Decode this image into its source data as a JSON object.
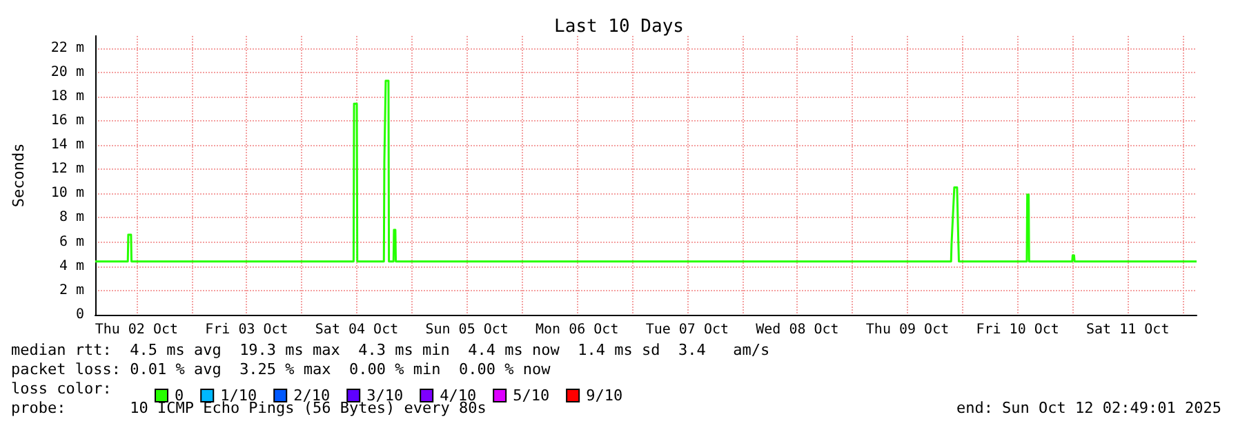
{
  "chart_data": {
    "type": "line",
    "title": "Last 10 Days",
    "ylabel": "Seconds",
    "xlim": [
      "2025-10-02T03:00",
      "2025-10-12T03:00"
    ],
    "xticks": [
      {
        "value": "2025-10-02T12:00",
        "label": "Thu 02 Oct"
      },
      {
        "value": "2025-10-03T00:00",
        "label": null
      },
      {
        "value": "2025-10-03T12:00",
        "label": "Fri 03 Oct"
      },
      {
        "value": "2025-10-04T00:00",
        "label": null
      },
      {
        "value": "2025-10-04T12:00",
        "label": "Sat 04 Oct"
      },
      {
        "value": "2025-10-05T00:00",
        "label": null
      },
      {
        "value": "2025-10-05T12:00",
        "label": "Sun 05 Oct"
      },
      {
        "value": "2025-10-06T00:00",
        "label": null
      },
      {
        "value": "2025-10-06T12:00",
        "label": "Mon 06 Oct"
      },
      {
        "value": "2025-10-07T00:00",
        "label": null
      },
      {
        "value": "2025-10-07T12:00",
        "label": "Tue 07 Oct"
      },
      {
        "value": "2025-10-08T00:00",
        "label": null
      },
      {
        "value": "2025-10-08T12:00",
        "label": "Wed 08 Oct"
      },
      {
        "value": "2025-10-09T00:00",
        "label": null
      },
      {
        "value": "2025-10-09T12:00",
        "label": "Thu 09 Oct"
      },
      {
        "value": "2025-10-10T00:00",
        "label": null
      },
      {
        "value": "2025-10-10T12:00",
        "label": "Fri 10 Oct"
      },
      {
        "value": "2025-10-11T00:00",
        "label": null
      },
      {
        "value": "2025-10-11T12:00",
        "label": "Sat 11 Oct"
      },
      {
        "value": "2025-10-12T00:00",
        "label": null
      }
    ],
    "ylim": [
      0,
      23
    ],
    "yticks": [
      {
        "value": 0,
        "label": "0"
      },
      {
        "value": 2,
        "label": "2 m"
      },
      {
        "value": 4,
        "label": "4 m"
      },
      {
        "value": 6,
        "label": "6 m"
      },
      {
        "value": 8,
        "label": "8 m"
      },
      {
        "value": 10,
        "label": "10 m"
      },
      {
        "value": 12,
        "label": "12 m"
      },
      {
        "value": 14,
        "label": "14 m"
      },
      {
        "value": 16,
        "label": "16 m"
      },
      {
        "value": 18,
        "label": "18 m"
      },
      {
        "value": 20,
        "label": "20 m"
      },
      {
        "value": 22,
        "label": "22 m"
      }
    ],
    "grid": true,
    "legend": "bottom left",
    "marker": "none",
    "line_style": "solid",
    "series": [
      {
        "name": "0",
        "color": "#26ff00",
        "x": [
          "2025-10-02T03:00",
          "2025-10-02T10:06",
          "2025-10-02T10:12",
          "2025-10-02T10:48",
          "2025-10-02T10:54",
          "2025-10-04T11:18",
          "2025-10-04T11:24",
          "2025-10-04T12:00",
          "2025-10-04T12:06",
          "2025-10-04T17:54",
          "2025-10-04T18:00",
          "2025-10-04T18:18",
          "2025-10-04T18:54",
          "2025-10-04T19:00",
          "2025-10-04T20:00",
          "2025-10-04T20:06",
          "2025-10-04T20:24",
          "2025-10-04T20:30",
          "2025-10-09T21:30",
          "2025-10-09T21:36",
          "2025-10-09T22:12",
          "2025-10-09T22:48",
          "2025-10-09T23:06",
          "2025-10-09T23:12",
          "2025-10-10T14:00",
          "2025-10-10T14:06",
          "2025-10-10T14:24",
          "2025-10-10T14:30",
          "2025-10-10T23:54",
          "2025-10-11T00:00",
          "2025-10-11T00:18",
          "2025-10-11T00:24",
          "2025-10-12T03:00"
        ],
        "values": [
          4.4,
          4.4,
          6.6,
          6.6,
          4.4,
          4.4,
          17.4,
          17.4,
          4.4,
          4.4,
          12.6,
          19.3,
          19.3,
          4.4,
          4.4,
          7.0,
          7.0,
          4.4,
          4.4,
          5.8,
          10.5,
          10.5,
          5.8,
          4.4,
          4.4,
          9.9,
          9.9,
          4.4,
          4.4,
          4.9,
          4.9,
          4.4,
          4.4
        ]
      },
      {
        "name": "1/10",
        "color": "#00b8ff"
      },
      {
        "name": "2/10",
        "color": "#0059ff"
      },
      {
        "name": "3/10",
        "color": "#5e00ff"
      },
      {
        "name": "4/10",
        "color": "#7e00ff"
      },
      {
        "name": "5/10",
        "color": "#dd00ff"
      },
      {
        "name": "9/10",
        "color": "#ff0000"
      }
    ],
    "annotations": [
      "median rtt:  4.5 ms avg  19.3 ms max  4.3 ms min  4.4 ms now  1.4 ms sd  3.4   am/s",
      "packet loss: 0.01 % avg  3.25 % max  0.00 % min  0.00 % now",
      "loss color:",
      "probe:       10 ICMP Echo Pings (56 Bytes) every 80s",
      "end: Sun Oct 12 02:49:01 2025"
    ]
  }
}
